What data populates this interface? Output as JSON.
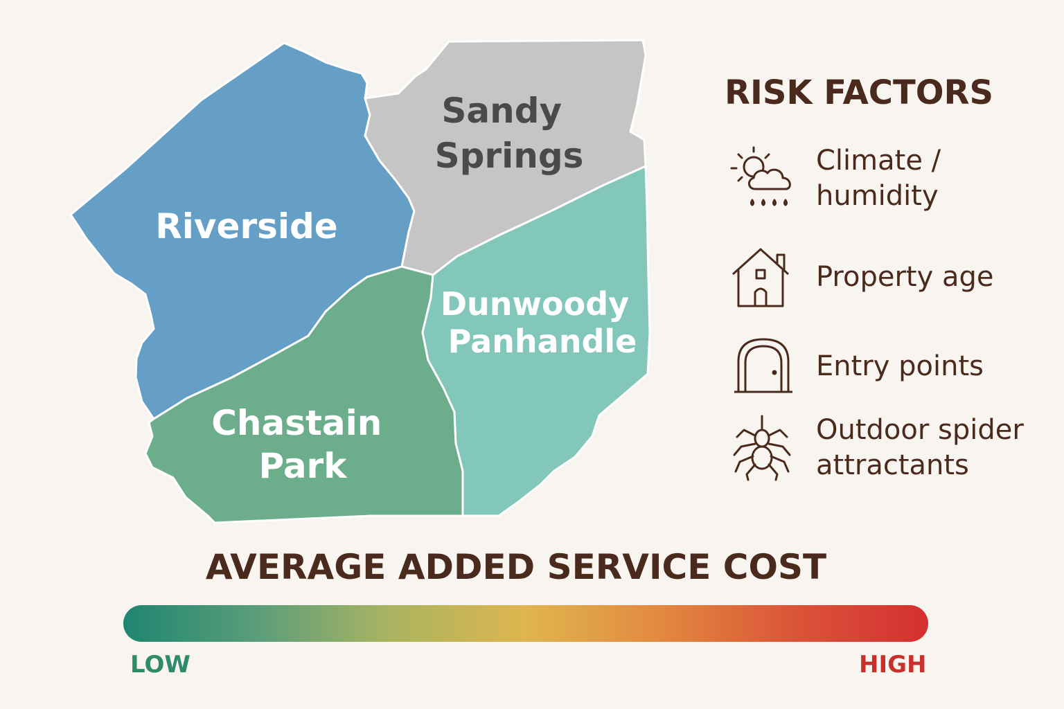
{
  "regions": [
    {
      "id": "riverside",
      "lines": [
        "Riverside"
      ],
      "color": "#669fc6"
    },
    {
      "id": "sandy-springs",
      "lines": [
        "Sandy",
        "Springs"
      ],
      "color": "#c5c5c5"
    },
    {
      "id": "chastain-park",
      "lines": [
        "Chastain",
        "Park"
      ],
      "color": "#6cae8b"
    },
    {
      "id": "dunwoody-panhandle",
      "lines": [
        "Dunwoody",
        "Panhandle"
      ],
      "color": "#82c7b9"
    }
  ],
  "risk_factors": {
    "title": "RISK FACTORS",
    "items": [
      {
        "icon": "weather-icon",
        "lines": [
          "Climate /",
          "humidity"
        ]
      },
      {
        "icon": "house-icon",
        "lines": [
          "Property age"
        ]
      },
      {
        "icon": "door-icon",
        "lines": [
          "Entry points"
        ]
      },
      {
        "icon": "spider-icon",
        "lines": [
          "Outdoor spider",
          "attractants"
        ]
      }
    ]
  },
  "cost_scale": {
    "title": "AVERAGE ADDED SERVICE COST",
    "low_label": "LOW",
    "high_label": "HIGH",
    "gradient": [
      "#1f8571",
      "#5c9e7a",
      "#a9b461",
      "#dfb54f",
      "#e2883f",
      "#db5538",
      "#d42f31"
    ],
    "low_color": "#2e8a6b",
    "high_color": "#c9302c"
  },
  "colors": {
    "background": "#f8f5f0",
    "text_dark": "#4a2a1c",
    "label_light": "#ffffff",
    "label_dark": "#4a4a4a"
  }
}
